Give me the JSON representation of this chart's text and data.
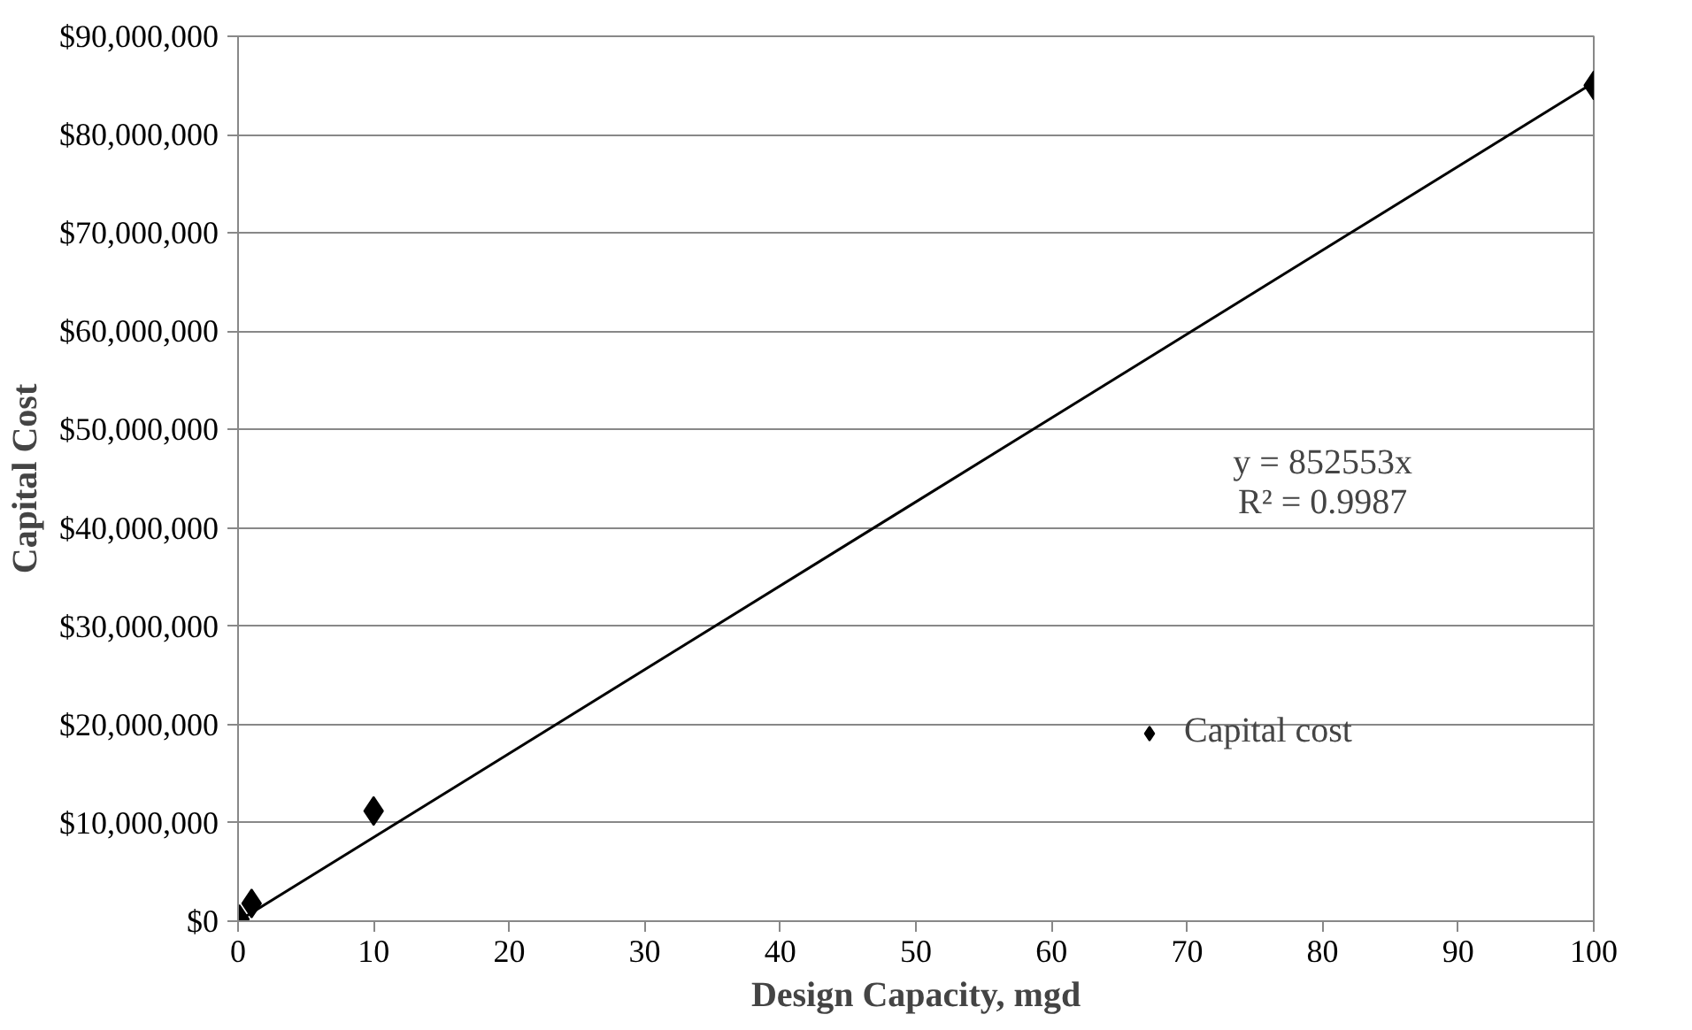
{
  "chart_data": {
    "type": "scatter",
    "xlabel": "Design Capacity, mgd",
    "ylabel": "Capital Cost",
    "series": [
      {
        "name": "Capital cost",
        "color": "#000000",
        "marker": "diamond",
        "x": [
          0.1,
          1,
          10,
          100
        ],
        "values": [
          200000,
          1800000,
          11200000,
          85000000
        ]
      },
      {
        "type": "line",
        "color": "#000000",
        "x": [
          0,
          100
        ],
        "values": [
          0,
          85300000
        ]
      }
    ],
    "annotations": [
      "y = 852553x",
      "R² = 0.9987"
    ],
    "xlim": [
      0,
      100
    ],
    "xticks": [
      0,
      10,
      20,
      30,
      40,
      50,
      60,
      70,
      80,
      90,
      100
    ],
    "ylim": [
      0,
      90000000
    ],
    "yticks": [
      {
        "value": 0,
        "label": "$0"
      },
      {
        "value": 10000000,
        "label": "$10,000,000"
      },
      {
        "value": 20000000,
        "label": "$20,000,000"
      },
      {
        "value": 30000000,
        "label": "$30,000,000"
      },
      {
        "value": 40000000,
        "label": "$40,000,000"
      },
      {
        "value": 50000000,
        "label": "$50,000,000"
      },
      {
        "value": 60000000,
        "label": "$60,000,000"
      },
      {
        "value": 70000000,
        "label": "$70,000,000"
      },
      {
        "value": 80000000,
        "label": "$80,000,000"
      },
      {
        "value": 90000000,
        "label": "$90,000,000"
      }
    ],
    "grid": "y",
    "legend": "right"
  }
}
